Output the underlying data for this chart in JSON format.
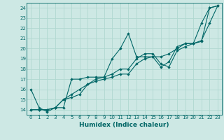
{
  "title": "",
  "xlabel": "Humidex (Indice chaleur)",
  "bg_color": "#cde8e4",
  "grid_color": "#b0d8d0",
  "line_color": "#006666",
  "xlim": [
    -0.5,
    23.5
  ],
  "ylim": [
    13.5,
    24.5
  ],
  "xticks": [
    0,
    1,
    2,
    3,
    4,
    5,
    6,
    7,
    8,
    9,
    10,
    11,
    12,
    13,
    14,
    15,
    16,
    17,
    18,
    19,
    20,
    21,
    22,
    23
  ],
  "yticks": [
    14,
    15,
    16,
    17,
    18,
    19,
    20,
    21,
    22,
    23,
    24
  ],
  "line1_x": [
    0,
    1,
    2,
    3,
    4,
    5,
    6,
    7,
    8,
    9,
    10,
    11,
    12,
    13,
    14,
    15,
    16,
    17,
    18,
    19,
    20,
    21,
    22,
    23
  ],
  "line1_y": [
    16.0,
    14.2,
    13.8,
    14.2,
    14.2,
    17.0,
    17.0,
    17.2,
    17.2,
    17.2,
    19.0,
    20.0,
    21.5,
    19.2,
    19.2,
    19.2,
    18.2,
    18.7,
    20.2,
    20.5,
    20.5,
    22.5,
    24.0,
    24.2
  ],
  "line2_x": [
    0,
    1,
    2,
    3,
    4,
    5,
    6,
    7,
    8,
    9,
    10,
    11,
    12,
    13,
    14,
    15,
    16,
    17,
    18,
    19,
    20,
    21,
    22,
    23
  ],
  "line2_y": [
    14.0,
    14.0,
    14.0,
    14.2,
    15.0,
    15.2,
    15.5,
    16.5,
    16.8,
    17.0,
    17.2,
    17.5,
    17.5,
    18.5,
    19.0,
    19.2,
    19.2,
    19.5,
    20.0,
    20.5,
    20.5,
    20.7,
    24.0,
    24.2
  ],
  "line3_x": [
    0,
    1,
    2,
    3,
    4,
    5,
    6,
    7,
    8,
    9,
    10,
    11,
    12,
    13,
    14,
    15,
    16,
    17,
    18,
    19,
    20,
    21,
    22,
    23
  ],
  "line3_y": [
    14.0,
    14.0,
    14.0,
    14.2,
    15.0,
    15.5,
    16.0,
    16.5,
    17.0,
    17.2,
    17.5,
    18.0,
    18.0,
    19.0,
    19.5,
    19.5,
    18.5,
    18.2,
    19.8,
    20.2,
    20.5,
    20.8,
    22.5,
    24.2
  ]
}
